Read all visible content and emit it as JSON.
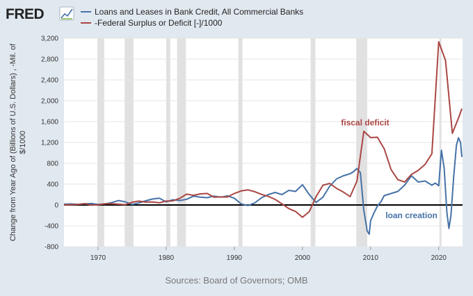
{
  "header": {
    "logo_text": "FRED",
    "legend": [
      {
        "label": "Loans and Leases in Bank Credit, All Commercial Banks",
        "color": "#4572a7"
      },
      {
        "label": "-Federal Surplus or Deficit [-]/1000",
        "color": "#aa4643"
      }
    ]
  },
  "footer": {
    "source": "Sources: Board of Governors; OMB"
  },
  "chart_data": {
    "type": "line",
    "title": "",
    "xlabel": "",
    "ylabel_lines": [
      "Change from Year Ago of (Billions of U.S. Dollars) , -Mil. of",
      "$/1000"
    ],
    "xlim": [
      1965,
      2023.5
    ],
    "ylim": [
      -800,
      3200
    ],
    "x_ticks": [
      1970,
      1980,
      1990,
      2000,
      2010,
      2020
    ],
    "y_ticks": [
      -800,
      -400,
      0,
      400,
      800,
      1200,
      1600,
      2000,
      2400,
      2800,
      3200
    ],
    "y_tick_labels": [
      "-800",
      "-400",
      "0",
      "400",
      "800",
      "1,200",
      "1,600",
      "2,000",
      "2,400",
      "2,800",
      "3,200"
    ],
    "grid": true,
    "zero_line": true,
    "recessions": [
      [
        1969.9,
        1970.9
      ],
      [
        1973.9,
        1975.2
      ],
      [
        1980.0,
        1980.6
      ],
      [
        1981.6,
        1982.9
      ],
      [
        1990.6,
        1991.2
      ],
      [
        2001.2,
        2001.9
      ],
      [
        2007.9,
        2009.5
      ],
      [
        2020.1,
        2020.4
      ]
    ],
    "annotations": [
      {
        "text": "fiscal deficit",
        "x": 2009.2,
        "y": 1530,
        "color": "#aa4643"
      },
      {
        "text": "loan creation",
        "x": 2016.0,
        "y": -250,
        "color": "#4572a7"
      }
    ],
    "series": [
      {
        "name": "Loans and Leases in Bank Credit, All Commercial Banks",
        "color": "#4572a7",
        "points": [
          [
            1965,
            15
          ],
          [
            1966,
            20
          ],
          [
            1967,
            12
          ],
          [
            1968,
            22
          ],
          [
            1969,
            28
          ],
          [
            1970,
            10
          ],
          [
            1971,
            20
          ],
          [
            1972,
            45
          ],
          [
            1973,
            85
          ],
          [
            1974,
            60
          ],
          [
            1975,
            10
          ],
          [
            1976,
            40
          ],
          [
            1977,
            80
          ],
          [
            1978,
            115
          ],
          [
            1979,
            130
          ],
          [
            1980,
            60
          ],
          [
            1981,
            100
          ],
          [
            1982,
            85
          ],
          [
            1983,
            110
          ],
          [
            1984,
            170
          ],
          [
            1985,
            150
          ],
          [
            1986,
            140
          ],
          [
            1987,
            170
          ],
          [
            1988,
            150
          ],
          [
            1989,
            175
          ],
          [
            1990,
            130
          ],
          [
            1991,
            20
          ],
          [
            1992,
            -10
          ],
          [
            1993,
            40
          ],
          [
            1994,
            140
          ],
          [
            1995,
            200
          ],
          [
            1996,
            240
          ],
          [
            1997,
            200
          ],
          [
            1998,
            280
          ],
          [
            1999,
            260
          ],
          [
            2000,
            390
          ],
          [
            2001,
            200
          ],
          [
            2002,
            50
          ],
          [
            2003,
            150
          ],
          [
            2004,
            360
          ],
          [
            2005,
            500
          ],
          [
            2006,
            560
          ],
          [
            2007,
            600
          ],
          [
            2007.5,
            640
          ],
          [
            2008,
            700
          ],
          [
            2008.5,
            620
          ],
          [
            2009,
            -100
          ],
          [
            2009.5,
            -500
          ],
          [
            2009.8,
            -560
          ],
          [
            2010,
            -300
          ],
          [
            2010.5,
            -150
          ],
          [
            2011,
            -20
          ],
          [
            2011.5,
            60
          ],
          [
            2012,
            180
          ],
          [
            2013,
            220
          ],
          [
            2014,
            260
          ],
          [
            2015,
            380
          ],
          [
            2016,
            560
          ],
          [
            2017,
            440
          ],
          [
            2018,
            460
          ],
          [
            2019,
            380
          ],
          [
            2019.5,
            420
          ],
          [
            2020,
            370
          ],
          [
            2020.4,
            1050
          ],
          [
            2020.8,
            700
          ],
          [
            2021.2,
            -150
          ],
          [
            2021.5,
            -450
          ],
          [
            2021.8,
            -200
          ],
          [
            2022.2,
            550
          ],
          [
            2022.6,
            1150
          ],
          [
            2022.9,
            1290
          ],
          [
            2023.2,
            1200
          ],
          [
            2023.4,
            920
          ]
        ]
      },
      {
        "name": "-Federal Surplus or Deficit [-]/1000",
        "color": "#aa4643",
        "points": [
          [
            1965,
            2
          ],
          [
            1966,
            4
          ],
          [
            1967,
            9
          ],
          [
            1968,
            25
          ],
          [
            1969,
            -3
          ],
          [
            1970,
            3
          ],
          [
            1971,
            23
          ],
          [
            1972,
            23
          ],
          [
            1973,
            15
          ],
          [
            1974,
            6
          ],
          [
            1975,
            53
          ],
          [
            1976,
            74
          ],
          [
            1977,
            54
          ],
          [
            1978,
            59
          ],
          [
            1979,
            41
          ],
          [
            1980,
            74
          ],
          [
            1981,
            79
          ],
          [
            1982,
            128
          ],
          [
            1983,
            208
          ],
          [
            1984,
            185
          ],
          [
            1985,
            212
          ],
          [
            1986,
            221
          ],
          [
            1987,
            150
          ],
          [
            1988,
            155
          ],
          [
            1989,
            153
          ],
          [
            1990,
            221
          ],
          [
            1991,
            269
          ],
          [
            1992,
            290
          ],
          [
            1993,
            255
          ],
          [
            1994,
            203
          ],
          [
            1995,
            164
          ],
          [
            1996,
            107
          ],
          [
            1997,
            22
          ],
          [
            1998,
            -69
          ],
          [
            1999,
            -126
          ],
          [
            2000,
            -236
          ],
          [
            2001,
            -128
          ],
          [
            2002,
            158
          ],
          [
            2003,
            378
          ],
          [
            2004,
            413
          ],
          [
            2005,
            318
          ],
          [
            2006,
            248
          ],
          [
            2007,
            161
          ],
          [
            2008,
            459
          ],
          [
            2009,
            1413
          ],
          [
            2010,
            1294
          ],
          [
            2011,
            1300
          ],
          [
            2012,
            1077
          ],
          [
            2013,
            680
          ],
          [
            2014,
            485
          ],
          [
            2015,
            442
          ],
          [
            2016,
            585
          ],
          [
            2017,
            665
          ],
          [
            2018,
            779
          ],
          [
            2019,
            984
          ],
          [
            2020,
            3132
          ],
          [
            2021,
            2775
          ],
          [
            2022,
            1375
          ],
          [
            2023,
            1700
          ],
          [
            2023.4,
            1850
          ]
        ]
      }
    ]
  }
}
